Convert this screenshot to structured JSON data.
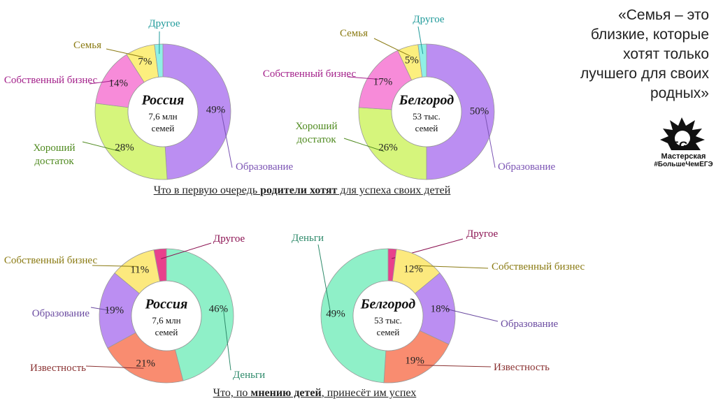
{
  "chart_data": [
    {
      "type": "pie",
      "title": "Россия",
      "subtitle": "7,6 млн семей",
      "categories": [
        "Образование",
        "Хороший достаток",
        "Собственный бизнес",
        "Семья",
        "Другое"
      ],
      "values": [
        49,
        28,
        14,
        7,
        2
      ],
      "value_labels": [
        "49%",
        "28%",
        "14%",
        "7%",
        null
      ],
      "colors": [
        "#bb8ef2",
        "#d6f57c",
        "#f78bd9",
        "#fcef7e",
        "#8ff0e6"
      ],
      "label_colors": [
        "#7a52b3",
        "#4f8a1f",
        "#a3208a",
        "#8a7a12",
        "#1f9a9a"
      ]
    },
    {
      "type": "pie",
      "title": "Белгород",
      "subtitle": "53 тыс. семей",
      "categories": [
        "Образование",
        "Хороший достаток",
        "Собственный бизнес",
        "Семья",
        "Другое"
      ],
      "values": [
        50,
        26,
        17,
        5,
        2
      ],
      "value_labels": [
        "50%",
        "26%",
        "17%",
        "5%",
        null
      ],
      "colors": [
        "#bb8ef2",
        "#d6f57c",
        "#f78bd9",
        "#fcef7e",
        "#8ff0e6"
      ],
      "label_colors": [
        "#7a52b3",
        "#4f8a1f",
        "#a3208a",
        "#8a7a12",
        "#1f9a9a"
      ]
    },
    {
      "type": "pie",
      "title": "Россия",
      "subtitle": "7,6 млн семей",
      "categories": [
        "Деньги",
        "Известность",
        "Образование",
        "Собственный бизнес",
        "Другое"
      ],
      "values": [
        46,
        21,
        19,
        11,
        3
      ],
      "value_labels": [
        "46%",
        "21%",
        "19%",
        "11%",
        null
      ],
      "colors": [
        "#8ff0c8",
        "#f98c70",
        "#bb8ef2",
        "#fce97e",
        "#e8408c"
      ],
      "label_colors": [
        "#2e8a6a",
        "#8a3232",
        "#6a4aa0",
        "#8a7a12",
        "#8a1050"
      ]
    },
    {
      "type": "pie",
      "title": "Белгород",
      "subtitle": "53 тыс. семей",
      "categories": [
        "Другое",
        "Собственный бизнес",
        "Образование",
        "Известность",
        "Деньги"
      ],
      "values": [
        2,
        12,
        18,
        19,
        49
      ],
      "value_labels": [
        null,
        "12%",
        "18%",
        "19%",
        "49%"
      ],
      "colors": [
        "#e8408c",
        "#fce97e",
        "#bb8ef2",
        "#f98c70",
        "#8ff0c8"
      ],
      "label_colors": [
        "#8a1050",
        "#8a7a12",
        "#6a4aa0",
        "#8a3232",
        "#2e8a6a"
      ]
    }
  ],
  "captions": [
    {
      "parts": [
        {
          "text": "Что в первую очередь ",
          "bold": false
        },
        {
          "text": "родители хотят",
          "bold": true
        },
        {
          "text": " для успеха своих детей",
          "bold": false
        }
      ]
    },
    {
      "parts": [
        {
          "text": "Что, по ",
          "bold": false
        },
        {
          "text": "мнению детей",
          "bold": true
        },
        {
          "text": ", принесёт им успех",
          "bold": false
        }
      ]
    }
  ],
  "quote": {
    "lines": [
      "«Семья – это",
      "близкие, которые",
      "хотят только",
      "лучшего для своих",
      "родных»"
    ]
  },
  "logo": {
    "mark": "EGE",
    "name": "Мастерская",
    "tag": "#БольшеЧемЕГЭ"
  }
}
